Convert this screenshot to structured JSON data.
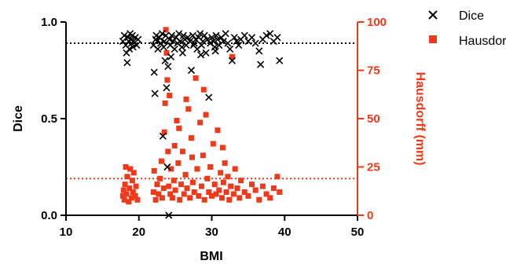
{
  "chart_data": {
    "type": "scatter",
    "title": "",
    "xlabel": "BMI",
    "ylabel": "Dice",
    "y2label": "Hausdorff (mm)",
    "xlim": [
      10,
      50
    ],
    "ylim": [
      0,
      1
    ],
    "y2lim": [
      0,
      100
    ],
    "x_ticks": [
      "10",
      "20",
      "30",
      "40",
      "50"
    ],
    "y_ticks": [
      "0.0",
      "0.5",
      "1.0"
    ],
    "y2_ticks": [
      "0",
      "25",
      "50",
      "75",
      "100"
    ],
    "grid": false,
    "legend_position": "top-right",
    "reference_lines": [
      {
        "axis": "y",
        "value": 0.89,
        "color": "#000000"
      },
      {
        "axis": "y2",
        "value": 19,
        "color": "#ee3a1a"
      }
    ],
    "series": [
      {
        "name": "Dice",
        "axis": "y",
        "marker": "x",
        "color": "#000000",
        "points": [
          [
            17.8,
            0.9
          ],
          [
            18.0,
            0.93
          ],
          [
            18.2,
            0.88
          ],
          [
            18.3,
            0.84
          ],
          [
            18.4,
            0.79
          ],
          [
            18.5,
            0.92
          ],
          [
            18.6,
            0.9
          ],
          [
            18.7,
            0.86
          ],
          [
            18.8,
            0.94
          ],
          [
            18.9,
            0.91
          ],
          [
            19.0,
            0.89
          ],
          [
            19.1,
            0.93
          ],
          [
            19.2,
            0.87
          ],
          [
            19.3,
            0.9
          ],
          [
            19.5,
            0.92
          ],
          [
            19.7,
            0.88
          ],
          [
            19.9,
            0.91
          ],
          [
            22.0,
            0.88
          ],
          [
            22.1,
            0.74
          ],
          [
            22.2,
            0.63
          ],
          [
            22.3,
            0.91
          ],
          [
            22.4,
            0.93
          ],
          [
            22.5,
            0.9
          ],
          [
            22.6,
            0.86
          ],
          [
            22.8,
            0.92
          ],
          [
            23.0,
            0.89
          ],
          [
            23.2,
            0.94
          ],
          [
            23.3,
            0.41
          ],
          [
            23.4,
            0.87
          ],
          [
            23.5,
            0.9
          ],
          [
            23.6,
            0.8
          ],
          [
            23.7,
            0.93
          ],
          [
            23.8,
            0.66
          ],
          [
            23.9,
            0.25
          ],
          [
            24.0,
            0.77
          ],
          [
            24.1,
            0.0
          ],
          [
            24.2,
            0.91
          ],
          [
            24.3,
            0.88
          ],
          [
            24.5,
            0.93
          ],
          [
            24.7,
            0.9
          ],
          [
            24.9,
            0.86
          ],
          [
            25.1,
            0.92
          ],
          [
            25.3,
            0.89
          ],
          [
            25.5,
            0.94
          ],
          [
            25.7,
            0.9
          ],
          [
            25.9,
            0.87
          ],
          [
            26.1,
            0.93
          ],
          [
            26.3,
            0.91
          ],
          [
            26.5,
            0.88
          ],
          [
            26.7,
            0.92
          ],
          [
            27.0,
            0.9
          ],
          [
            27.2,
            0.75
          ],
          [
            27.4,
            0.93
          ],
          [
            27.6,
            0.89
          ],
          [
            27.8,
            0.91
          ],
          [
            28.0,
            0.86
          ],
          [
            28.2,
            0.92
          ],
          [
            28.4,
            0.94
          ],
          [
            28.6,
            0.88
          ],
          [
            28.8,
            0.9
          ],
          [
            29.0,
            0.93
          ],
          [
            29.2,
            0.84
          ],
          [
            29.4,
            0.91
          ],
          [
            29.6,
            0.61
          ],
          [
            29.8,
            0.89
          ],
          [
            30.0,
            0.92
          ],
          [
            30.2,
            0.9
          ],
          [
            30.4,
            0.87
          ],
          [
            30.6,
            0.93
          ],
          [
            30.8,
            0.91
          ],
          [
            31.0,
            0.88
          ],
          [
            31.3,
            0.92
          ],
          [
            31.6,
            0.9
          ],
          [
            31.9,
            0.94
          ],
          [
            32.2,
            0.89
          ],
          [
            32.5,
            0.86
          ],
          [
            32.8,
            0.8
          ],
          [
            33.1,
            0.92
          ],
          [
            33.4,
            0.9
          ],
          [
            33.7,
            0.88
          ],
          [
            34.0,
            0.91
          ],
          [
            34.5,
            0.93
          ],
          [
            35.0,
            0.9
          ],
          [
            35.5,
            0.92
          ],
          [
            36.0,
            0.89
          ],
          [
            36.5,
            0.85
          ],
          [
            36.7,
            0.78
          ],
          [
            37.0,
            0.91
          ],
          [
            37.5,
            0.93
          ],
          [
            38.0,
            0.94
          ],
          [
            38.5,
            0.9
          ],
          [
            39.0,
            0.92
          ],
          [
            39.3,
            0.8
          ],
          [
            26.0,
            0.84
          ],
          [
            28.5,
            0.83
          ],
          [
            24.4,
            0.82
          ],
          [
            30.5,
            0.85
          ],
          [
            27.5,
            0.88
          ]
        ]
      },
      {
        "name": "Hausdorff",
        "axis": "y2",
        "marker": "square",
        "color": "#ee3a1a",
        "points": [
          [
            17.8,
            10
          ],
          [
            17.9,
            13
          ],
          [
            18.0,
            8
          ],
          [
            18.1,
            16
          ],
          [
            18.2,
            25
          ],
          [
            18.3,
            11
          ],
          [
            18.4,
            20
          ],
          [
            18.6,
            7
          ],
          [
            18.7,
            14
          ],
          [
            18.8,
            24
          ],
          [
            19.0,
            9
          ],
          [
            19.1,
            18
          ],
          [
            19.2,
            12
          ],
          [
            19.3,
            22
          ],
          [
            19.5,
            10
          ],
          [
            19.6,
            15
          ],
          [
            19.8,
            8
          ],
          [
            22.0,
            12
          ],
          [
            22.1,
            23
          ],
          [
            22.3,
            8
          ],
          [
            22.5,
            16
          ],
          [
            22.7,
            11
          ],
          [
            22.9,
            19
          ],
          [
            23.1,
            28
          ],
          [
            23.2,
            9
          ],
          [
            23.4,
            14
          ],
          [
            23.5,
            43
          ],
          [
            23.6,
            58
          ],
          [
            23.7,
            96
          ],
          [
            23.8,
            84
          ],
          [
            23.9,
            70
          ],
          [
            24.0,
            33
          ],
          [
            24.1,
            15
          ],
          [
            24.2,
            62
          ],
          [
            24.3,
            11
          ],
          [
            24.4,
            24
          ],
          [
            24.6,
            9
          ],
          [
            24.8,
            18
          ],
          [
            25.0,
            13
          ],
          [
            25.2,
            49
          ],
          [
            25.4,
            27
          ],
          [
            25.6,
            8
          ],
          [
            25.8,
            16
          ],
          [
            26.0,
            33
          ],
          [
            26.2,
            11
          ],
          [
            26.4,
            21
          ],
          [
            26.6,
            14
          ],
          [
            26.8,
            55
          ],
          [
            27.0,
            9
          ],
          [
            27.2,
            40
          ],
          [
            27.4,
            17
          ],
          [
            27.6,
            12
          ],
          [
            27.8,
            71
          ],
          [
            28.0,
            24
          ],
          [
            28.2,
            10
          ],
          [
            28.4,
            48
          ],
          [
            28.6,
            15
          ],
          [
            28.8,
            31
          ],
          [
            29.0,
            8
          ],
          [
            29.2,
            52
          ],
          [
            29.4,
            19
          ],
          [
            29.6,
            12
          ],
          [
            29.8,
            25
          ],
          [
            30.0,
            10
          ],
          [
            30.2,
            37
          ],
          [
            30.4,
            16
          ],
          [
            30.6,
            11
          ],
          [
            30.8,
            44
          ],
          [
            31.0,
            13
          ],
          [
            31.2,
            22
          ],
          [
            31.4,
            9
          ],
          [
            31.6,
            17
          ],
          [
            31.8,
            27
          ],
          [
            32.0,
            12
          ],
          [
            32.2,
            20
          ],
          [
            32.4,
            8
          ],
          [
            32.6,
            15
          ],
          [
            32.8,
            82
          ],
          [
            33.0,
            11
          ],
          [
            33.2,
            24
          ],
          [
            33.5,
            14
          ],
          [
            33.8,
            9
          ],
          [
            34.0,
            18
          ],
          [
            34.5,
            12
          ],
          [
            35.0,
            10
          ],
          [
            35.5,
            16
          ],
          [
            36.0,
            13
          ],
          [
            36.5,
            8
          ],
          [
            37.0,
            15
          ],
          [
            37.5,
            11
          ],
          [
            38.0,
            9
          ],
          [
            38.5,
            14
          ],
          [
            39.0,
            20
          ],
          [
            39.3,
            12
          ],
          [
            26.5,
            60
          ],
          [
            25.5,
            45
          ],
          [
            28.9,
            65
          ],
          [
            24.9,
            36
          ],
          [
            31.5,
            35
          ],
          [
            27.3,
            30
          ]
        ]
      }
    ]
  }
}
